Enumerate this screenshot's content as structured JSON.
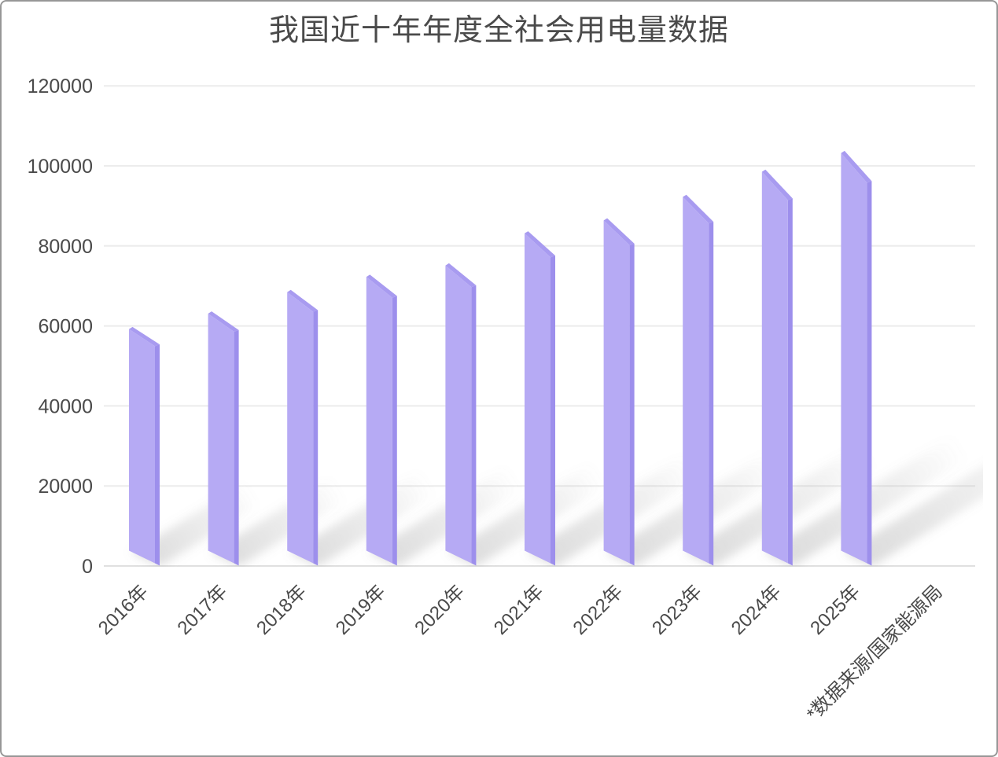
{
  "chart_data": {
    "type": "bar",
    "title": "我国近十年年度全社会用电量数据",
    "categories": [
      "2016年",
      "2017年",
      "2018年",
      "2019年",
      "2020年",
      "2021年",
      "2022年",
      "2023年",
      "2024年",
      "2025年"
    ],
    "values": [
      59198,
      63077,
      68449,
      72255,
      75110,
      83128,
      86372,
      92241,
      98521,
      103200
    ],
    "source_note": "*数据来源/国家能源局",
    "ylim": [
      0,
      120000
    ],
    "ytick_step": 20000,
    "yticks": [
      "120000",
      "100000",
      "80000",
      "60000",
      "40000",
      "20000",
      "0"
    ],
    "grid": "horizontal",
    "legend": "none",
    "style": "3d-slab-bars-with-floor-shadows",
    "colors": {
      "bar_face": "#b6aaf4",
      "bar_top_bevel": "#a89bf0",
      "bar_side": "#9d8fec",
      "shadow": "#8f8f8f",
      "text": "#4a4a4a",
      "gridline": "#ececec",
      "axis_line": "#e0e0e0",
      "background": "#ffffff"
    }
  }
}
